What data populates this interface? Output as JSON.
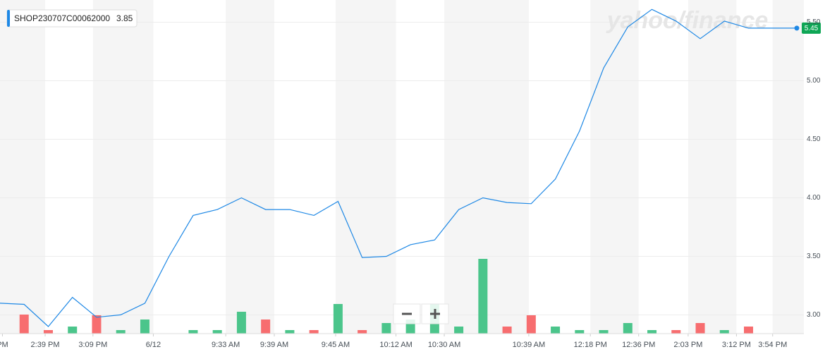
{
  "chart_data": {
    "type": "line",
    "watermark": "yahoo/finance",
    "legend_value": 3.85,
    "grid": true,
    "xlim": [
      0,
      33
    ],
    "xticks": [
      {
        "value": 0.1,
        "label": "PM"
      },
      {
        "value": 1.87,
        "label": "2:39 PM"
      },
      {
        "value": 3.85,
        "label": "3:09 PM"
      },
      {
        "value": 6.35,
        "label": "6/12"
      },
      {
        "value": 9.35,
        "label": "9:33 AM"
      },
      {
        "value": 11.36,
        "label": "9:39 AM"
      },
      {
        "value": 13.9,
        "label": "9:45 AM"
      },
      {
        "value": 16.4,
        "label": "10:12 AM"
      },
      {
        "value": 18.4,
        "label": "10:30 AM"
      },
      {
        "value": 21.9,
        "label": "10:39 AM"
      },
      {
        "value": 24.45,
        "label": "12:18 PM"
      },
      {
        "value": 26.45,
        "label": "12:36 PM"
      },
      {
        "value": 28.5,
        "label": "2:03 PM"
      },
      {
        "value": 30.5,
        "label": "3:12 PM"
      },
      {
        "value": 32.0,
        "label": "3:54 PM"
      }
    ],
    "ylim": [
      2.84,
      5.66
    ],
    "yticks": [
      {
        "value": 3,
        "label": "3.00"
      },
      {
        "value": 3.5,
        "label": "3.50"
      },
      {
        "value": 4,
        "label": "4.00"
      },
      {
        "value": 4.5,
        "label": "4.50"
      },
      {
        "value": 5,
        "label": "5.00"
      },
      {
        "value": 5.5,
        "label": "5.50"
      }
    ],
    "series": [
      {
        "name": "SHOP230707C00062000",
        "color": "#1e88e5",
        "values": [
          3.1,
          3.09,
          2.9,
          3.15,
          2.98,
          3.0,
          3.1,
          3.5,
          3.85,
          3.9,
          4.0,
          3.9,
          3.9,
          3.85,
          3.97,
          3.49,
          3.5,
          3.6,
          3.64,
          3.9,
          4.0,
          3.96,
          3.95,
          4.16,
          4.57,
          5.11,
          5.46,
          5.61,
          5.51,
          5.36,
          5.51,
          5.45,
          5.45,
          5.45
        ]
      }
    ],
    "volume": {
      "ylim": [
        0,
        160
      ],
      "values": [
        null,
        27,
        5,
        10,
        26,
        5,
        20,
        null,
        5,
        5,
        31,
        20,
        5,
        5,
        42,
        5,
        15,
        20,
        42,
        10,
        106,
        10,
        26,
        10,
        5,
        5,
        15,
        5,
        5,
        15,
        5,
        10,
        null,
        null
      ],
      "colors": [
        null,
        "#f76d6f",
        "#f76d6f",
        "#4bc58b",
        "#f76d6f",
        "#4bc58b",
        "#4bc58b",
        null,
        "#4bc58b",
        "#4bc58b",
        "#4bc58b",
        "#f76d6f",
        "#4bc58b",
        "#f76d6f",
        "#4bc58b",
        "#f76d6f",
        "#4bc58b",
        "#4bc58b",
        "#4bc58b",
        "#4bc58b",
        "#4bc58b",
        "#f76d6f",
        "#f76d6f",
        "#4bc58b",
        "#4bc58b",
        "#4bc58b",
        "#4bc58b",
        "#4bc58b",
        "#f76d6f",
        "#f76d6f",
        "#4bc58b",
        "#f76d6f",
        null,
        null
      ]
    }
  }
}
